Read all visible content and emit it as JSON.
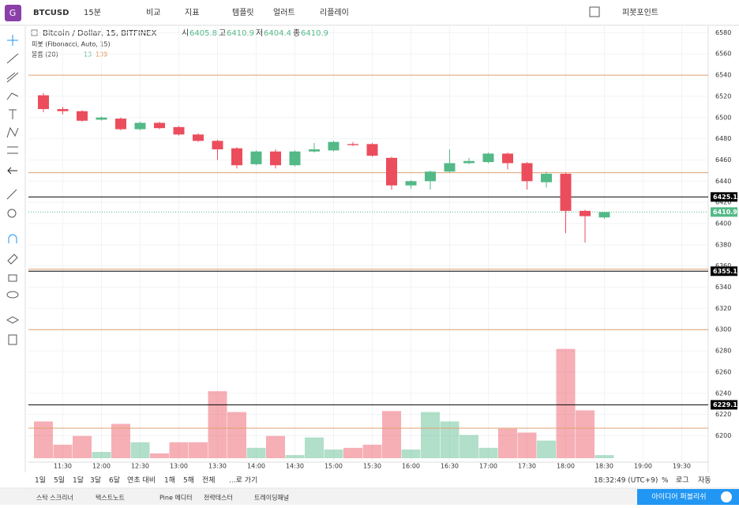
{
  "toolbar": {
    "symbol": "BTCUSD",
    "interval": "15분",
    "items": [
      "비교",
      "지표",
      "템플릿",
      "얼러트",
      "리플레이"
    ],
    "pivot": "피봇포인트"
  },
  "chart_data": {
    "type": "candlestick",
    "title": "Bitcoin / Dollar, 15, BITFINEX",
    "ohlc_labels": [
      "시",
      "고",
      "저",
      "종"
    ],
    "indicators": [
      "피봇 (Fibonacci, Auto, 15)",
      "볼륨 (20)"
    ],
    "volume_legend": [
      13,
      139
    ],
    "categories": [
      null,
      "11:30",
      null,
      "12:00",
      null,
      "12:30",
      null,
      "13:00",
      null,
      "13:30",
      null,
      "14:00",
      null,
      "14:30",
      null,
      "15:00",
      null,
      "15:30",
      null,
      "16:00",
      null,
      "16:30",
      null,
      "17:00",
      null,
      "17:30",
      null,
      "18:00",
      null,
      "18:30",
      null,
      "19:00",
      null,
      "19:30"
    ],
    "open": [
      6521,
      6508,
      6506,
      6498,
      6499,
      6489,
      6495,
      6491,
      6484,
      6478,
      6471,
      6456,
      6468,
      6455,
      6468,
      6469,
      6475,
      6475,
      6462,
      6436,
      6440,
      6449,
      6457,
      6458,
      6466,
      6457,
      6439,
      6447,
      6412,
      6405.8,
      null,
      null,
      null,
      null
    ],
    "high": [
      6523,
      6510,
      6507,
      6501,
      6500,
      6496,
      6496,
      6492,
      6485,
      6479,
      6472,
      6469,
      6470,
      6469,
      6476,
      6478,
      6477,
      6476,
      6463,
      6441,
      6450,
      6470,
      6462,
      6467,
      6467,
      6458,
      6449,
      6448,
      6413,
      6410.9,
      null,
      null,
      null,
      null
    ],
    "low": [
      6505,
      6503,
      6496,
      6497,
      6488,
      6488,
      6489,
      6483,
      6477,
      6460,
      6452,
      6455,
      6452,
      6454,
      6467,
      6468,
      6473,
      6463,
      6432,
      6433,
      6432,
      6448,
      6456,
      6457,
      6451,
      6432,
      6434,
      6391,
      6382,
      6404.4,
      null,
      null,
      null,
      null
    ],
    "close": [
      6508,
      6506,
      6497,
      6500,
      6489,
      6495,
      6490,
      6484,
      6478,
      6470,
      6455,
      6468,
      6455,
      6468,
      6470,
      6477,
      6474,
      6464,
      6436,
      6440,
      6449,
      6457,
      6459,
      6466,
      6457,
      6440,
      6447,
      6412,
      6407,
      6410.9,
      null,
      null,
      null,
      null
    ],
    "volume": [
      152,
      56,
      92,
      26,
      142,
      66,
      20,
      66,
      66,
      277,
      191,
      43,
      92,
      13,
      86,
      36,
      43,
      56,
      195,
      36,
      191,
      152,
      96,
      43,
      122,
      106,
      73,
      452,
      198,
      13,
      null,
      null,
      null,
      null
    ],
    "ylim": [
      6175,
      6587
    ],
    "yticks": [
      6200,
      6220,
      6240,
      6260,
      6280,
      6300,
      6320,
      6340,
      6360,
      6380,
      6400,
      6420,
      6440,
      6460,
      6480,
      6500,
      6520,
      6540,
      6560,
      6580
    ],
    "volume_ylim": [
      0,
      1790
    ],
    "up_color": "#53b987",
    "down_color": "#eb4d5c",
    "price_lines": [
      {
        "value": 6540,
        "color": "#e0a070",
        "tagged": false
      },
      {
        "value": 6448,
        "color": "#e0a070",
        "tagged": false
      },
      {
        "value": 6425.1,
        "color": "#000000",
        "tagged": true
      },
      {
        "value": 6410.9,
        "color": "#53b987",
        "tagged": true
      },
      {
        "value": 6357,
        "color": "#e0a070",
        "tagged": false
      },
      {
        "value": 6355.1,
        "color": "#000000",
        "tagged": true
      },
      {
        "value": 6300,
        "color": "#e0a070",
        "tagged": false
      },
      {
        "value": 6229.1,
        "color": "#000000",
        "tagged": true
      },
      {
        "value": 6207,
        "color": "#e0a070",
        "tagged": false
      }
    ]
  },
  "range_bar": {
    "ranges": [
      "1일",
      "5일",
      "1달",
      "3달",
      "6달",
      "연초 대비",
      "1해",
      "5해",
      "전체"
    ],
    "goto": "...로 가기",
    "clock": "18:32:49 (UTC+9)",
    "options": [
      "%",
      "로그",
      "자동"
    ]
  },
  "bottom_tabs": [
    "스탁 스크리너",
    "텍스트노트",
    "Pine 에디터",
    "전략테스터",
    "트레이딩패널"
  ],
  "publish": "아이디어 퍼블리쉬"
}
